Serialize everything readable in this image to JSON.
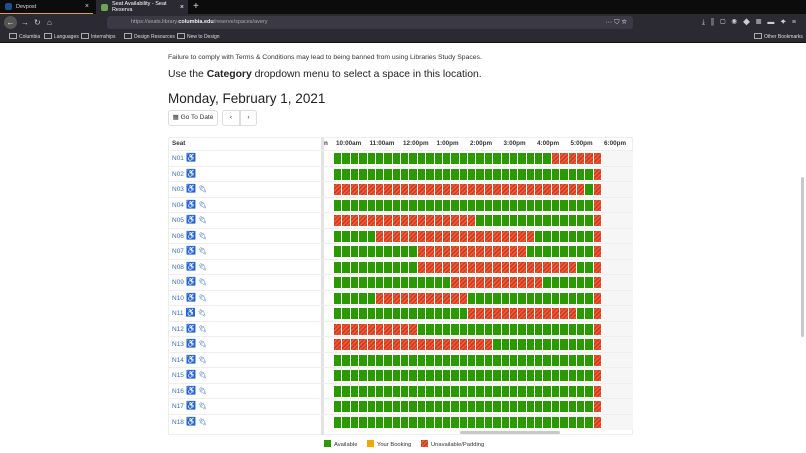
{
  "browser": {
    "tabs": [
      {
        "label": "Devpost",
        "active": false
      },
      {
        "label": "Seat Availability - Seat Reserva",
        "active": true
      }
    ],
    "url_prefix": "https://seats.library.",
    "url_domain": "columbia.edu",
    "url_path": "/reserve/spaces/avery",
    "bookmarks": [
      "Columbia",
      "Languages",
      "Internships",
      "Design Resources",
      "New to Design"
    ],
    "other_bookmarks": "Other Bookmarks"
  },
  "page": {
    "warning": "Failure to comply with Terms & Conditions may lead to being banned from using Libraries Study Spaces.",
    "instr_pre": "Use the ",
    "instr_bold": "Category",
    "instr_post": " dropdown menu to select a space in this location.",
    "date": "Monday, February 1, 2021",
    "goto_label": "Go To Date",
    "prev": "‹",
    "next": "›"
  },
  "grid": {
    "seat_header": "Seat",
    "partial_header": "n",
    "hours": [
      "10:00am",
      "11:00am",
      "12:00pm",
      "1:00pm",
      "2:00pm",
      "3:00pm",
      "4:00pm",
      "5:00pm",
      "6:00pm"
    ],
    "slot_minutes": 15,
    "colors": {
      "available": "#2b9a00",
      "your_booking": "#f0a800",
      "unavailable": "#d33a1c"
    },
    "rows": [
      {
        "seat": "N01",
        "accessible": true,
        "power": false,
        "slots": "AAAAAAAAAAAAAAAAAAAAAAAAAAUUUUUU"
      },
      {
        "seat": "N02",
        "accessible": true,
        "power": false,
        "slots": "AAAAAAAAAAAAAAAAAAAAAAAAAAAAAAAU"
      },
      {
        "seat": "N03",
        "accessible": true,
        "power": true,
        "slots": "UUUUUUUUUUUUUUUUUUUUUUUUUUUUUUAU"
      },
      {
        "seat": "N04",
        "accessible": true,
        "power": true,
        "slots": "AAAAAAAAAAAAAAAAAAAAAAAAAAAAAAAU"
      },
      {
        "seat": "N05",
        "accessible": true,
        "power": true,
        "slots": "UUUUUUUUUUUUUUUUUAAAAAAAAAAAAAAU"
      },
      {
        "seat": "N06",
        "accessible": true,
        "power": true,
        "slots": "AAAAAUUUUUUUUUUUUUUUUUUUAAAAAAAU"
      },
      {
        "seat": "N07",
        "accessible": true,
        "power": true,
        "slots": "AAAAAAAAAAUUUUUUUUUUUUUAAAAAAAAU"
      },
      {
        "seat": "N08",
        "accessible": true,
        "power": true,
        "slots": "AAAAAAAAAAUUUUUUUUUUUUUUUUUUUAAU"
      },
      {
        "seat": "N09",
        "accessible": true,
        "power": true,
        "slots": "AAAAAAAAAAAAAAUUUUUUUUUUUAAAAAAU"
      },
      {
        "seat": "N10",
        "accessible": true,
        "power": true,
        "slots": "AAAAAUUUUUUUUUUUAAAAAAAAAAAAAAAU"
      },
      {
        "seat": "N11",
        "accessible": true,
        "power": true,
        "slots": "AAAAAAAAAAAAAAAAUUUUUUUUUUUUUAAU"
      },
      {
        "seat": "N12",
        "accessible": true,
        "power": true,
        "slots": "UUUUUUUUUUAAAAAAAAAAAAAAAAAAAAAU"
      },
      {
        "seat": "N13",
        "accessible": true,
        "power": true,
        "slots": "UUUUUUUUUUUUUUUUUUUAAAAAAAAAAAAU"
      },
      {
        "seat": "N14",
        "accessible": true,
        "power": true,
        "slots": "AAAAAAAAAAAAAAAAAAAAAAAAAAAAAAAU"
      },
      {
        "seat": "N15",
        "accessible": true,
        "power": true,
        "slots": "AAAAAAAAAAAAAAAAAAAAAAAAAAAAAAAU"
      },
      {
        "seat": "N16",
        "accessible": true,
        "power": true,
        "slots": "AAAAAAAAAAAAAAAAAAAAAAAAAAAAAAAU"
      },
      {
        "seat": "N17",
        "accessible": true,
        "power": true,
        "slots": "AAAAAAAAAAAAAAAAAAAAAAAAAAAAAAAU"
      },
      {
        "seat": "N18",
        "accessible": true,
        "power": true,
        "slots": "AAAAAAAAAAAAAAAAAAAAAAAAAAAAAAAU"
      }
    ]
  },
  "legend": {
    "available": "Available",
    "your_booking": "Your Booking",
    "unavailable": "Unavailable/Padding"
  }
}
